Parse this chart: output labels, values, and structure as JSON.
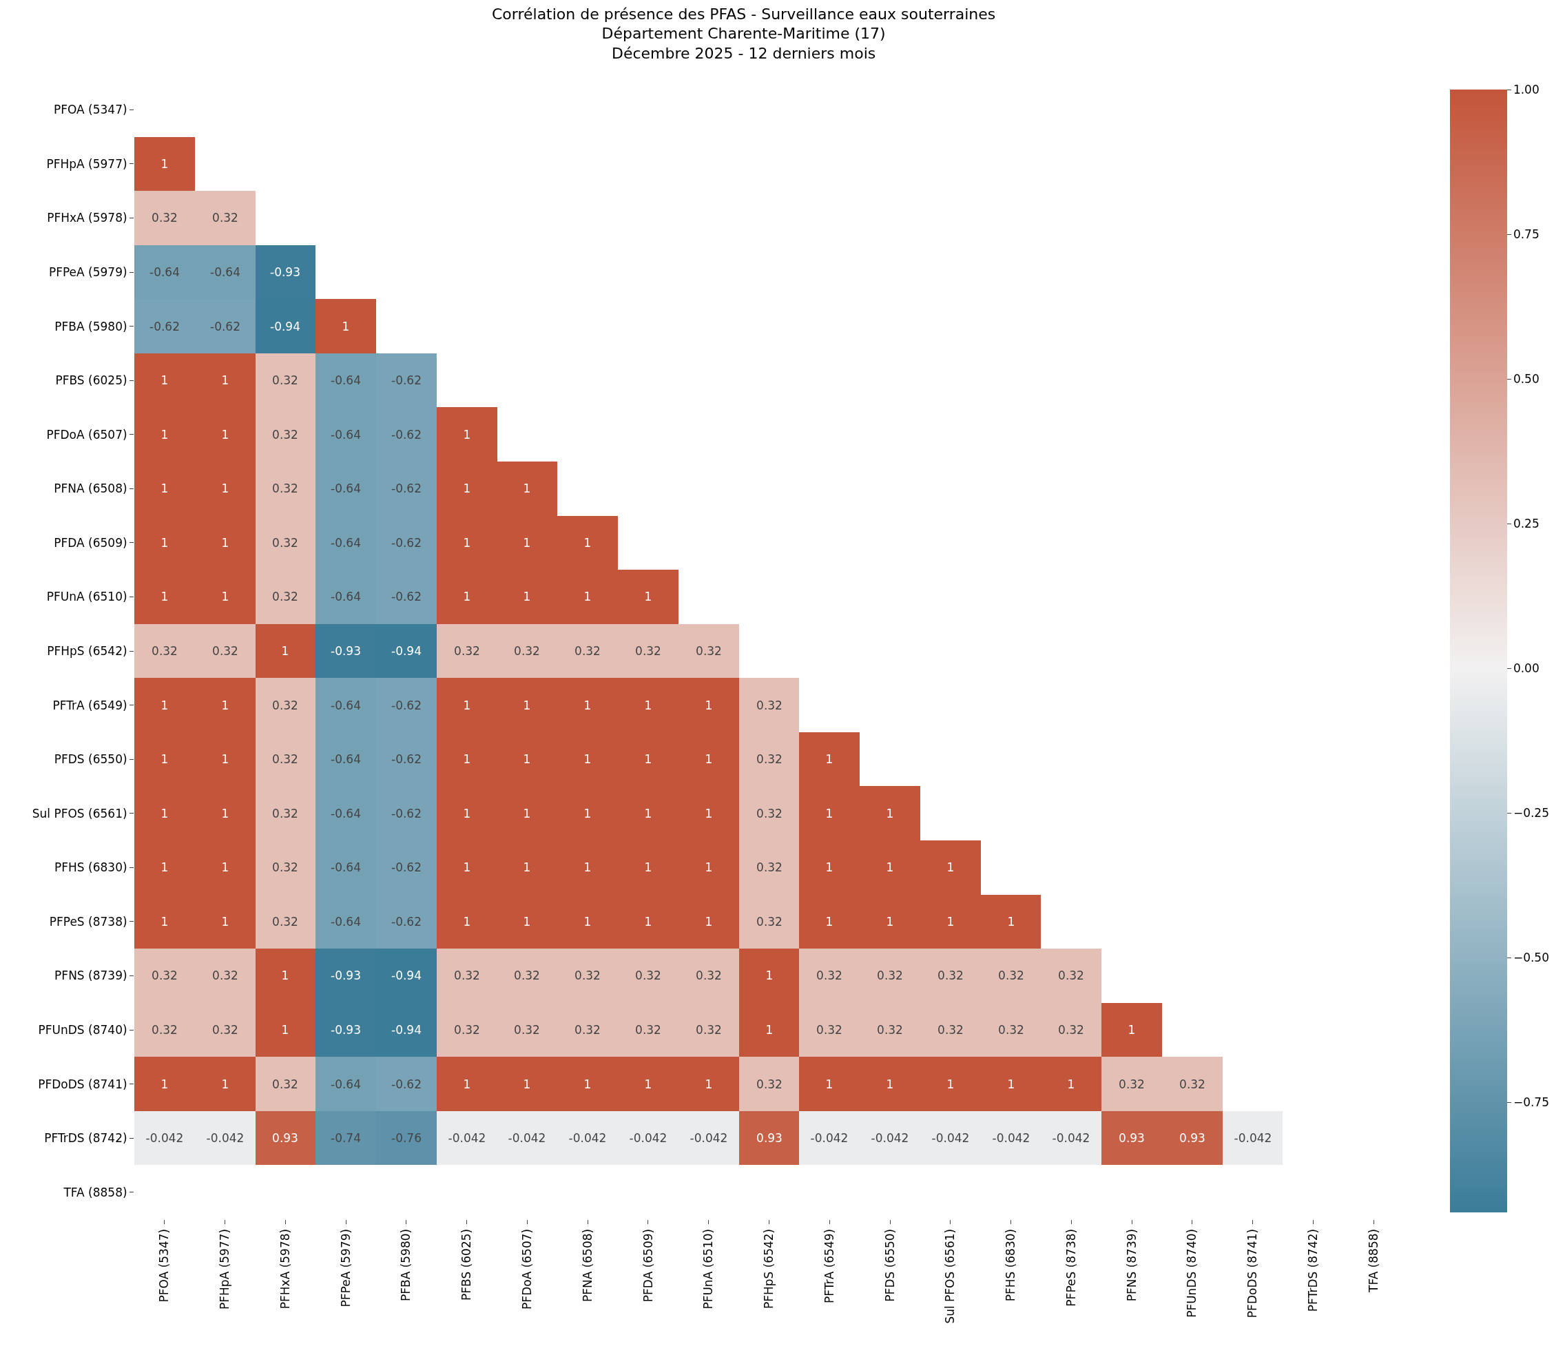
{
  "chart_data": {
    "type": "heatmap",
    "title": "Corrélation de présence des PFAS - Surveillance eaux souterraines\nDépartement Charente-Maritime (17)\nDécembre 2025 - 12 derniers mois",
    "categories": [
      "PFOA (5347)",
      "PFHpA (5977)",
      "PFHxA (5978)",
      "PFPeA (5979)",
      "PFBA (5980)",
      "PFBS (6025)",
      "PFDoA (6507)",
      "PFNA (6508)",
      "PFDA (6509)",
      "PFUnA (6510)",
      "PFHpS (6542)",
      "PFTrA (6549)",
      "PFDS (6550)",
      "Sul PFOS (6561)",
      "PFHS (6830)",
      "PFPeS (8738)",
      "PFNS (8739)",
      "PFUnDS (8740)",
      "PFDoDS (8741)",
      "PFTrDS (8742)",
      "TFA (8858)"
    ],
    "y_categories": [
      "PFOA (5347)",
      "PFHpA (5977)",
      "PFHxA (5978)",
      "PFPeA (5979)",
      "PFBA (5980)",
      "PFBS (6025)",
      "PFDoA (6507)",
      "PFNA (6508)",
      "PFDA (6509)",
      "PFUnA (6510)",
      "PFHpS (6542)",
      "PFTrA (6549)",
      "PFDS (6550)",
      "Sul PFOS (6561)",
      "PFHS (6830)",
      "PFPeS (8738)",
      "PFNS (8739)",
      "PFUnDS (8740)",
      "PFDoDS (8741)",
      "PFTrDS (8742)",
      "TFA (8858)"
    ],
    "cells": [
      [
        null,
        null,
        null,
        null,
        null,
        null,
        null,
        null,
        null,
        null,
        null,
        null,
        null,
        null,
        null,
        null,
        null,
        null,
        null,
        null,
        null
      ],
      [
        1,
        null,
        null,
        null,
        null,
        null,
        null,
        null,
        null,
        null,
        null,
        null,
        null,
        null,
        null,
        null,
        null,
        null,
        null,
        null,
        null
      ],
      [
        0.32,
        0.32,
        null,
        null,
        null,
        null,
        null,
        null,
        null,
        null,
        null,
        null,
        null,
        null,
        null,
        null,
        null,
        null,
        null,
        null,
        null
      ],
      [
        -0.64,
        -0.64,
        -0.93,
        null,
        null,
        null,
        null,
        null,
        null,
        null,
        null,
        null,
        null,
        null,
        null,
        null,
        null,
        null,
        null,
        null,
        null
      ],
      [
        -0.62,
        -0.62,
        -0.94,
        1,
        null,
        null,
        null,
        null,
        null,
        null,
        null,
        null,
        null,
        null,
        null,
        null,
        null,
        null,
        null,
        null,
        null
      ],
      [
        1,
        1,
        0.32,
        -0.64,
        -0.62,
        null,
        null,
        null,
        null,
        null,
        null,
        null,
        null,
        null,
        null,
        null,
        null,
        null,
        null,
        null,
        null
      ],
      [
        1,
        1,
        0.32,
        -0.64,
        -0.62,
        1,
        null,
        null,
        null,
        null,
        null,
        null,
        null,
        null,
        null,
        null,
        null,
        null,
        null,
        null,
        null
      ],
      [
        1,
        1,
        0.32,
        -0.64,
        -0.62,
        1,
        1,
        null,
        null,
        null,
        null,
        null,
        null,
        null,
        null,
        null,
        null,
        null,
        null,
        null,
        null
      ],
      [
        1,
        1,
        0.32,
        -0.64,
        -0.62,
        1,
        1,
        1,
        null,
        null,
        null,
        null,
        null,
        null,
        null,
        null,
        null,
        null,
        null,
        null,
        null
      ],
      [
        1,
        1,
        0.32,
        -0.64,
        -0.62,
        1,
        1,
        1,
        1,
        null,
        null,
        null,
        null,
        null,
        null,
        null,
        null,
        null,
        null,
        null,
        null
      ],
      [
        0.32,
        0.32,
        1,
        -0.93,
        -0.94,
        0.32,
        0.32,
        0.32,
        0.32,
        0.32,
        null,
        null,
        null,
        null,
        null,
        null,
        null,
        null,
        null,
        null,
        null
      ],
      [
        1,
        1,
        0.32,
        -0.64,
        -0.62,
        1,
        1,
        1,
        1,
        1,
        0.32,
        null,
        null,
        null,
        null,
        null,
        null,
        null,
        null,
        null,
        null
      ],
      [
        1,
        1,
        0.32,
        -0.64,
        -0.62,
        1,
        1,
        1,
        1,
        1,
        0.32,
        1,
        null,
        null,
        null,
        null,
        null,
        null,
        null,
        null,
        null
      ],
      [
        1,
        1,
        0.32,
        -0.64,
        -0.62,
        1,
        1,
        1,
        1,
        1,
        0.32,
        1,
        1,
        null,
        null,
        null,
        null,
        null,
        null,
        null,
        null
      ],
      [
        1,
        1,
        0.32,
        -0.64,
        -0.62,
        1,
        1,
        1,
        1,
        1,
        0.32,
        1,
        1,
        1,
        null,
        null,
        null,
        null,
        null,
        null,
        null
      ],
      [
        1,
        1,
        0.32,
        -0.64,
        -0.62,
        1,
        1,
        1,
        1,
        1,
        0.32,
        1,
        1,
        1,
        1,
        null,
        null,
        null,
        null,
        null,
        null
      ],
      [
        0.32,
        0.32,
        1,
        -0.93,
        -0.94,
        0.32,
        0.32,
        0.32,
        0.32,
        0.32,
        1,
        0.32,
        0.32,
        0.32,
        0.32,
        0.32,
        null,
        null,
        null,
        null,
        null
      ],
      [
        0.32,
        0.32,
        1,
        -0.93,
        -0.94,
        0.32,
        0.32,
        0.32,
        0.32,
        0.32,
        1,
        0.32,
        0.32,
        0.32,
        0.32,
        0.32,
        1,
        null,
        null,
        null,
        null
      ],
      [
        1,
        1,
        0.32,
        -0.64,
        -0.62,
        1,
        1,
        1,
        1,
        1,
        0.32,
        1,
        1,
        1,
        1,
        1,
        0.32,
        0.32,
        null,
        null,
        null
      ],
      [
        -0.042,
        -0.042,
        0.93,
        -0.74,
        -0.76,
        -0.042,
        -0.042,
        -0.042,
        -0.042,
        -0.042,
        0.93,
        -0.042,
        -0.042,
        -0.042,
        -0.042,
        -0.042,
        0.93,
        0.93,
        -0.042,
        null,
        null
      ],
      [
        null,
        null,
        null,
        null,
        null,
        null,
        null,
        null,
        null,
        null,
        null,
        null,
        null,
        null,
        null,
        null,
        null,
        null,
        null,
        null,
        null
      ]
    ],
    "clim": [
      -0.94,
      1
    ],
    "cticks": [
      {
        "value": -0.75,
        "label": "−0.75"
      },
      {
        "value": -0.5,
        "label": "−0.50"
      },
      {
        "value": -0.25,
        "label": "−0.25"
      },
      {
        "value": 0,
        "label": "0.00"
      },
      0.25,
      {
        "value": 0.5,
        "label": "0.50"
      },
      0.75,
      {
        "value": 1,
        "label": "1.00"
      }
    ],
    "data_labels": true
  }
}
